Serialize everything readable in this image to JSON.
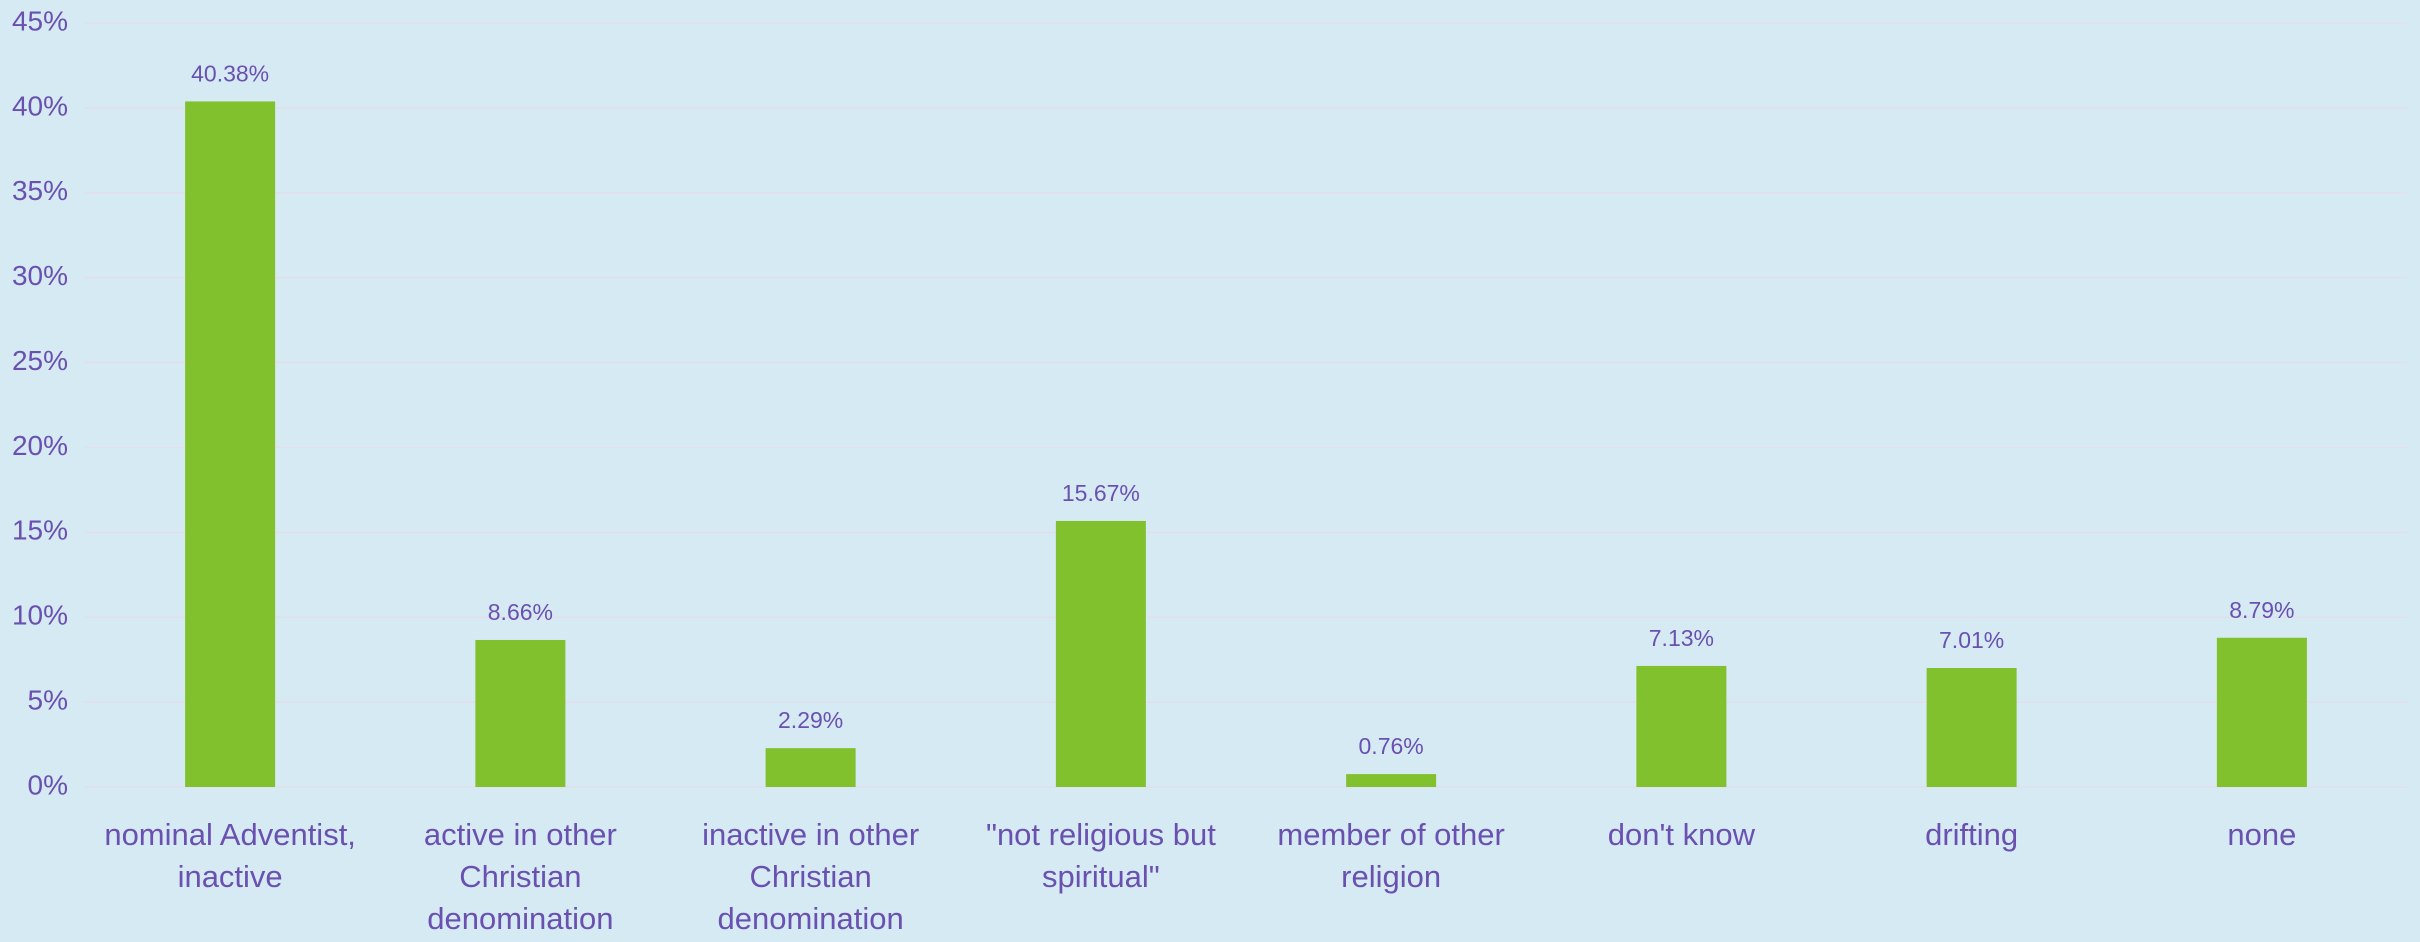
{
  "chart_data": {
    "type": "bar",
    "categories": [
      "nominal Adventist, inactive",
      "active in other Christian denomination",
      "inactive in other Christian denomination",
      "\"not religious but spiritual\"",
      "member of other religion",
      "don't know",
      "drifting",
      "none"
    ],
    "values": [
      40.38,
      8.66,
      2.29,
      15.67,
      0.76,
      7.13,
      7.01,
      8.79
    ],
    "value_labels": [
      "40.38%",
      "8.66%",
      "2.29%",
      "15.67%",
      "0.76%",
      "7.13%",
      "7.01%",
      "8.79%"
    ],
    "color": "#82c12e",
    "ylim": [
      0,
      45
    ],
    "yticks": [
      {
        "value": 0,
        "label": "0%"
      },
      {
        "value": 5,
        "label": "5%"
      },
      {
        "value": 10,
        "label": "10%"
      },
      {
        "value": 15,
        "label": "15%"
      },
      {
        "value": 20,
        "label": "20%"
      },
      {
        "value": 25,
        "label": "25%"
      },
      {
        "value": 30,
        "label": "30%"
      },
      {
        "value": 35,
        "label": "35%"
      },
      {
        "value": 40,
        "label": "40%"
      },
      {
        "value": 45,
        "label": "45%"
      }
    ],
    "grid": true
  }
}
